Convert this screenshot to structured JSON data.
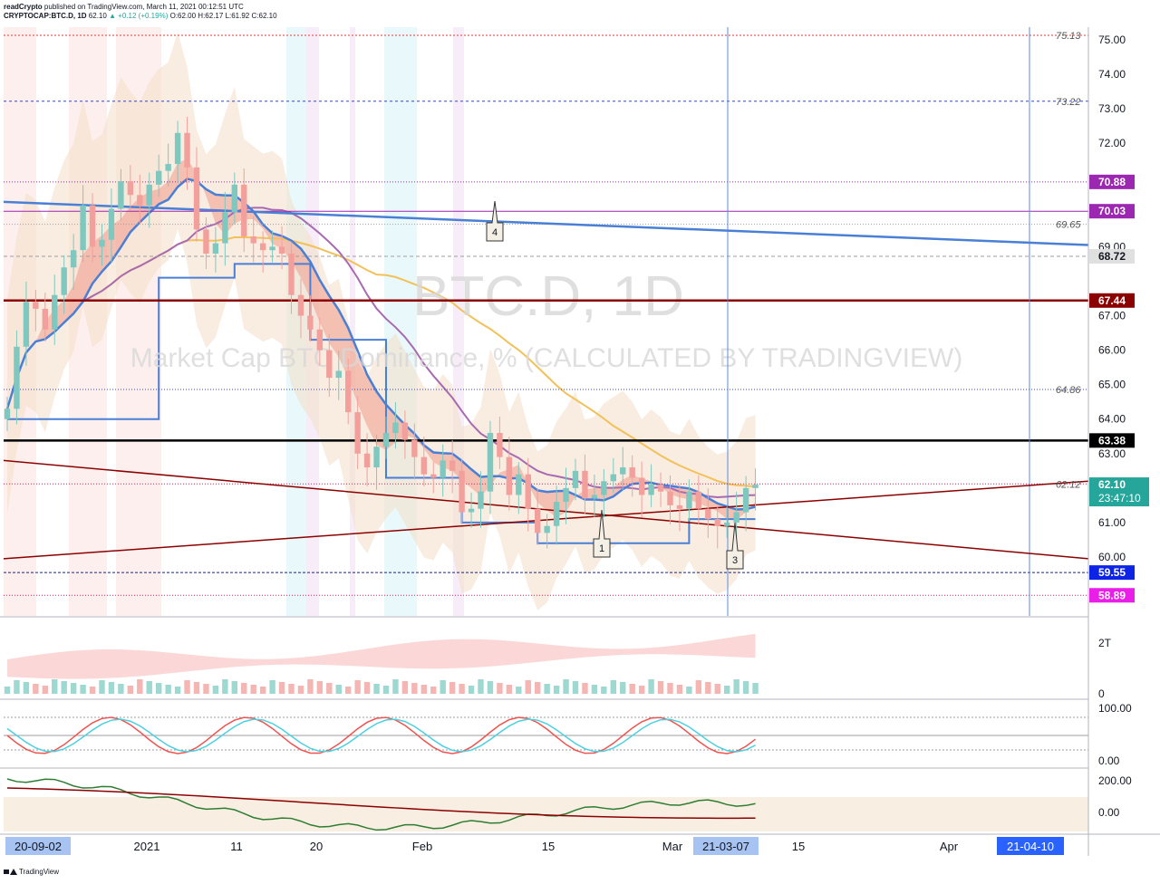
{
  "header": {
    "line1_user": "readCrypto",
    "line1_rest": "published on TradingView.com, March 11, 2021 00:12:51 UTC",
    "symbol": "CRYPTOCAP:BTC.D, 1D",
    "price": "62.10",
    "change": "▲ +0.12 (+0.19%)",
    "o": "O:62.00",
    "h": "H:62.17",
    "l": "L:61.92",
    "c": "C:62.10"
  },
  "watermark": {
    "symbol": "BTC.D, 1D",
    "description": "Market Cap BTC Dominance, % (CALCULATED BY TRADINGVIEW)"
  },
  "footer": {
    "brand": "TradingView"
  },
  "colors": {
    "up": "#26a69a",
    "down": "#ef5350",
    "trend_blue": "#4a7fd6",
    "support_black": "#000000",
    "resistance_darkred": "#8b0000",
    "ma_purple": "#a86ab0",
    "ma_yellow": "#f3c15a"
  },
  "price_axis": {
    "ticks": [
      "75.00",
      "74.00",
      "73.00",
      "72.00",
      "69.00",
      "67.00",
      "66.00",
      "65.00",
      "64.00",
      "63.00",
      "61.00",
      "60.00"
    ],
    "level_badges": [
      {
        "label": "70.88",
        "color": "#9c27b0"
      },
      {
        "label": "70.03",
        "color": "#9c27b0"
      },
      {
        "label": "68.72",
        "color": "#e0e0e0"
      },
      {
        "label": "67.44",
        "color": "#8b0000"
      },
      {
        "label": "63.38",
        "color": "#000000"
      },
      {
        "label": "59.55",
        "color": "#0d24e6"
      },
      {
        "label": "58.89",
        "color": "#e91ee9"
      }
    ],
    "line_labels": [
      "75.13",
      "73.22",
      "69.65",
      "64.86",
      "62.12"
    ],
    "current_price": "62.10",
    "countdown": "23:47:10"
  },
  "time_axis": {
    "labels": [
      "2021",
      "11",
      "20",
      "Feb",
      "15",
      "Mar",
      "15",
      "Apr"
    ],
    "start_label": "20-09-02",
    "cursor_label": "21-03-07",
    "end_label": "21-04-10"
  },
  "annotations": [
    "1",
    "3",
    "4"
  ],
  "volume_panel": {
    "ticks": [
      "2T",
      "0"
    ]
  },
  "stoch_panel": {
    "ticks": [
      "100.00",
      "0.00"
    ]
  },
  "osc_panel": {
    "ticks": [
      "200.00",
      "0.00"
    ]
  },
  "chart_data": {
    "type": "candlestick",
    "symbol": "CRYPTOCAP:BTC.D",
    "interval": "1D",
    "last": {
      "open": 62.0,
      "high": 62.17,
      "low": 61.92,
      "close": 62.1,
      "change": 0.12,
      "change_pct": 0.19
    },
    "y_range": [
      58.6,
      75.2
    ],
    "closes": [
      64.3,
      66.1,
      67.4,
      67.2,
      66.6,
      67.6,
      68.4,
      68.9,
      70.2,
      69.0,
      69.2,
      70.1,
      70.9,
      70.5,
      70.2,
      70.8,
      71.2,
      71.4,
      72.3,
      71.3,
      69.5,
      68.8,
      69.1,
      70.0,
      70.8,
      69.3,
      69.1,
      68.9,
      69.0,
      68.8,
      67.6,
      67.0,
      66.6,
      66.0,
      65.2,
      65.4,
      64.2,
      63.0,
      62.6,
      63.2,
      63.6,
      63.9,
      63.4,
      62.9,
      62.4,
      62.3,
      62.8,
      62.5,
      61.3,
      61.4,
      61.9,
      63.6,
      62.9,
      61.8,
      62.4,
      61.4,
      60.7,
      60.9,
      61.6,
      62.0,
      62.5,
      61.7,
      61.8,
      62.2,
      62.4,
      62.6,
      62.3,
      61.8,
      62.1,
      61.9,
      61.5,
      61.4,
      61.9,
      61.4,
      61.1,
      60.9,
      61.0,
      61.3,
      62.0,
      62.1
    ],
    "horizontal_levels": [
      75.13,
      73.22,
      70.88,
      70.03,
      69.65,
      68.72,
      67.44,
      64.86,
      63.38,
      62.12,
      59.55,
      58.89
    ],
    "trendlines": [
      {
        "name": "descending resistance (blue)",
        "from": [
          "2020-12-05",
          70.3
        ],
        "to": [
          "2021-04-10",
          69.05
        ]
      },
      {
        "name": "descending (dark red)",
        "from": [
          "2020-12-05",
          62.8
        ],
        "to": [
          "2021-04-10",
          59.95
        ]
      },
      {
        "name": "ascending (dark red)",
        "from": [
          "2020-12-05",
          59.95
        ],
        "to": [
          "2021-04-10",
          62.2
        ]
      }
    ],
    "x_labels": [
      "2021",
      "11",
      "20",
      "Feb",
      "15",
      "Mar",
      "15",
      "Apr"
    ],
    "y_ticks": [
      75,
      74,
      73,
      72,
      69,
      67,
      66,
      65,
      64,
      63,
      61,
      60
    ],
    "volume_ticks": [
      "0",
      "2T"
    ],
    "stochastic_ticks": [
      0,
      100
    ],
    "oscillator_ticks": [
      0,
      200
    ]
  }
}
